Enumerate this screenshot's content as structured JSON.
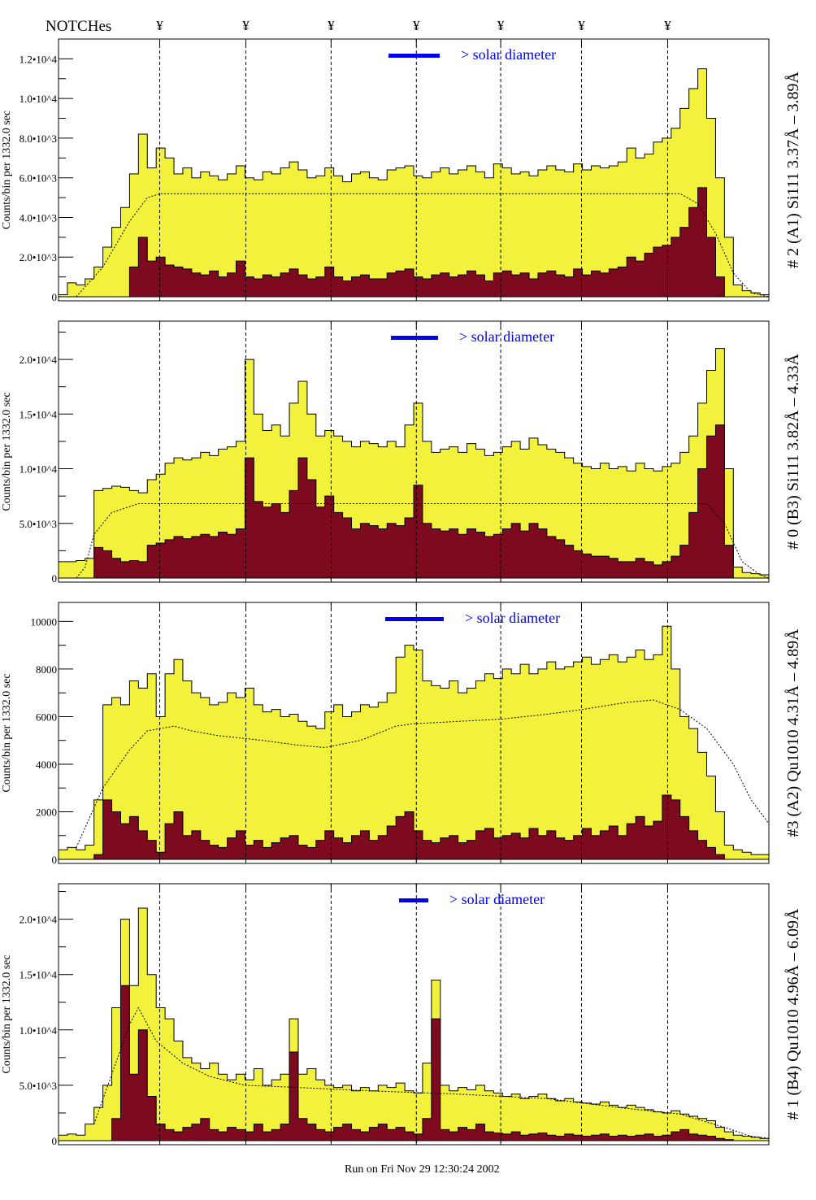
{
  "header": {
    "notches_label": "NOTCHes",
    "notch_marker": "¥"
  },
  "footer": {
    "run_info": "Run on Fri Nov 29 12:30:24 2002"
  },
  "colors": {
    "total": "#f2f23c",
    "subset": "#7d0a1e",
    "legend": "#0000ee",
    "outline": "#000000"
  },
  "chart_data": [
    {
      "type": "bar",
      "title": "# 2 (A1) Si111  3.37Å – 3.89Å",
      "ylabel": "Counts/bin per   1332.0 sec",
      "legend": "> solar diameter",
      "ylim": [
        0,
        13000
      ],
      "yticks": [
        {
          "v": 0,
          "label": "0"
        },
        {
          "v": 2000,
          "label": "2.0•10^3"
        },
        {
          "v": 4000,
          "label": "4.0•10^3"
        },
        {
          "v": 6000,
          "label": "6.0•10^3"
        },
        {
          "v": 8000,
          "label": "8.0•10^3"
        },
        {
          "v": 10000,
          "label": "1.0•10^4"
        },
        {
          "v": 12000,
          "label": "1.2•10^4"
        }
      ],
      "bins": 80,
      "notches": [
        11.4,
        21.1,
        30.7,
        40.3,
        49.8,
        58.9,
        68.6
      ],
      "series": [
        {
          "name": "total",
          "values": [
            100,
            700,
            600,
            900,
            1500,
            2500,
            3500,
            4500,
            6200,
            8200,
            6500,
            7500,
            7000,
            6200,
            6500,
            6000,
            6300,
            6100,
            5900,
            6200,
            6600,
            6000,
            5900,
            6300,
            6200,
            6500,
            6800,
            6400,
            6000,
            6100,
            6500,
            6100,
            5800,
            6200,
            6300,
            6000,
            5900,
            6400,
            6500,
            6600,
            6100,
            6000,
            6300,
            6500,
            6200,
            6400,
            6600,
            6300,
            6000,
            6700,
            6500,
            6200,
            6300,
            6100,
            6400,
            6600,
            6400,
            6300,
            6700,
            6400,
            6600,
            6500,
            6600,
            6800,
            7500,
            7000,
            7200,
            7800,
            8000,
            8500,
            9500,
            10500,
            11500,
            9000,
            6000,
            3000,
            600,
            300,
            200,
            100
          ]
        },
        {
          "name": "subset",
          "values": [
            0,
            0,
            0,
            0,
            0,
            0,
            0,
            0,
            1500,
            3000,
            1800,
            2000,
            1600,
            1500,
            1400,
            1200,
            1100,
            1300,
            1000,
            1200,
            1800,
            1000,
            900,
            1100,
            1000,
            1200,
            1400,
            1100,
            900,
            1000,
            1500,
            1000,
            800,
            1000,
            1100,
            900,
            900,
            1200,
            1300,
            1400,
            1000,
            900,
            1100,
            1200,
            1000,
            1100,
            1300,
            1100,
            800,
            1200,
            1300,
            1100,
            1200,
            900,
            1200,
            1300,
            1100,
            1000,
            1400,
            1100,
            1300,
            1200,
            1400,
            1500,
            2000,
            1800,
            2200,
            2500,
            2600,
            3000,
            3500,
            4500,
            5500,
            3000,
            1000,
            0,
            0,
            0,
            0,
            0
          ]
        },
        {
          "name": "model",
          "points": [
            [
              2,
              0
            ],
            [
              5,
              1500
            ],
            [
              8,
              3800
            ],
            [
              10,
              5000
            ],
            [
              11.5,
              5200
            ],
            [
              70,
              5200
            ],
            [
              72,
              4700
            ],
            [
              74,
              3200
            ],
            [
              76,
              1200
            ],
            [
              78,
              200
            ],
            [
              80,
              0
            ]
          ]
        }
      ]
    },
    {
      "type": "bar",
      "title": "# 0 (B3) Si111  3.82Å – 4.33Å",
      "ylabel": "Counts/bin per   1332.0 sec",
      "legend": "> solar diameter",
      "ylim": [
        0,
        23500
      ],
      "yticks": [
        {
          "v": 0,
          "label": "0"
        },
        {
          "v": 5000,
          "label": "5.0•10^3"
        },
        {
          "v": 10000,
          "label": "1.0•10^4"
        },
        {
          "v": 15000,
          "label": "1.5•10^4"
        },
        {
          "v": 20000,
          "label": "2.0•10^4"
        }
      ],
      "bins": 80,
      "notches": [
        11.4,
        21.1,
        30.7,
        40.3,
        49.8,
        58.9,
        68.6
      ],
      "series": [
        {
          "name": "total",
          "values": [
            1500,
            1500,
            1600,
            1800,
            8000,
            8200,
            8400,
            8300,
            8000,
            7800,
            9000,
            9500,
            10500,
            11000,
            10800,
            11000,
            11500,
            11200,
            11800,
            12000,
            12500,
            20000,
            15000,
            13500,
            14000,
            13000,
            16000,
            18000,
            15000,
            13000,
            13500,
            13000,
            12500,
            12000,
            12500,
            12300,
            12000,
            12500,
            12000,
            14000,
            16000,
            12500,
            11500,
            11800,
            12000,
            11500,
            12300,
            11800,
            11200,
            11500,
            12000,
            12500,
            11800,
            12800,
            12200,
            11800,
            11500,
            11000,
            10500,
            10200,
            10000,
            10500,
            10000,
            10200,
            9800,
            10500,
            10000,
            9800,
            10200,
            10500,
            11500,
            13000,
            16000,
            19000,
            21000,
            10000,
            1000,
            500,
            400,
            300
          ]
        },
        {
          "name": "subset",
          "values": [
            0,
            0,
            0,
            0,
            2800,
            2500,
            1800,
            1500,
            1600,
            1500,
            3000,
            3200,
            3500,
            3800,
            3600,
            3800,
            4000,
            3800,
            4200,
            4000,
            4500,
            11000,
            7000,
            6500,
            6800,
            6000,
            8000,
            11000,
            9000,
            6500,
            7500,
            6000,
            5500,
            4500,
            5000,
            4800,
            4500,
            5000,
            4800,
            5500,
            8500,
            5000,
            4500,
            4300,
            4500,
            4000,
            4500,
            4200,
            3800,
            4000,
            4500,
            5000,
            4300,
            5000,
            4500,
            3800,
            3500,
            3000,
            2500,
            2200,
            2000,
            2000,
            1800,
            1500,
            1500,
            1800,
            1500,
            1200,
            1500,
            2000,
            3000,
            6000,
            10000,
            13000,
            14000,
            3000,
            0,
            0,
            0,
            0
          ]
        },
        {
          "name": "model",
          "points": [
            [
              2,
              0
            ],
            [
              3,
              1000
            ],
            [
              4,
              4000
            ],
            [
              6,
              6000
            ],
            [
              9,
              6800
            ],
            [
              73,
              6800
            ],
            [
              75,
              5000
            ],
            [
              77,
              1500
            ],
            [
              79,
              300
            ],
            [
              80,
              0
            ]
          ]
        }
      ]
    },
    {
      "type": "bar",
      "title": "#3 (A2) Qu1010  4.31Å – 4.89Å",
      "ylabel": "Counts/bin per   1332.0 sec",
      "legend": "> solar diameter",
      "ylim": [
        0,
        10800
      ],
      "yticks": [
        {
          "v": 0,
          "label": "0"
        },
        {
          "v": 2000,
          "label": "2000"
        },
        {
          "v": 4000,
          "label": "4000"
        },
        {
          "v": 6000,
          "label": "6000"
        },
        {
          "v": 8000,
          "label": "8000"
        },
        {
          "v": 10000,
          "label": "10000"
        }
      ],
      "bins": 80,
      "notches": [
        11.4,
        21.1,
        30.7,
        40.3,
        49.8,
        58.9,
        68.6
      ],
      "series": [
        {
          "name": "total",
          "values": [
            400,
            500,
            400,
            600,
            2500,
            6500,
            6800,
            6500,
            7500,
            7200,
            7800,
            6000,
            7800,
            8400,
            7500,
            7000,
            6800,
            6500,
            6600,
            7000,
            6800,
            7200,
            6500,
            6200,
            6300,
            6000,
            6100,
            5800,
            5600,
            5500,
            6200,
            6500,
            6000,
            6200,
            6500,
            6400,
            6600,
            7000,
            8500,
            9000,
            8800,
            7500,
            7300,
            7200,
            7500,
            7000,
            7200,
            7500,
            7800,
            7600,
            8000,
            7800,
            8200,
            7800,
            8000,
            8300,
            8000,
            8100,
            8300,
            8500,
            8200,
            8400,
            8600,
            8300,
            8500,
            8800,
            8400,
            8600,
            9800,
            8000,
            6000,
            5500,
            4500,
            3500,
            2000,
            600,
            400,
            300,
            200,
            200
          ]
        },
        {
          "name": "subset",
          "values": [
            0,
            0,
            0,
            0,
            200,
            2500,
            2000,
            1500,
            1800,
            1200,
            800,
            300,
            1500,
            2000,
            1000,
            1200,
            800,
            600,
            500,
            900,
            1200,
            600,
            800,
            500,
            700,
            900,
            1000,
            600,
            500,
            800,
            1200,
            900,
            700,
            1000,
            1200,
            800,
            1000,
            1400,
            1800,
            2000,
            1200,
            800,
            700,
            900,
            1000,
            700,
            800,
            1200,
            1300,
            900,
            1000,
            1100,
            900,
            1300,
            1000,
            1200,
            900,
            800,
            1000,
            1300,
            1000,
            1200,
            1400,
            1000,
            1500,
            1800,
            1400,
            1600,
            2700,
            2500,
            1800,
            1200,
            800,
            500,
            200,
            0,
            0,
            0,
            0,
            0
          ]
        },
        {
          "name": "model",
          "points": [
            [
              2,
              500
            ],
            [
              5,
              3000
            ],
            [
              8,
              4600
            ],
            [
              10,
              5400
            ],
            [
              13,
              5600
            ],
            [
              15,
              5400
            ],
            [
              18,
              5200
            ],
            [
              23,
              5000
            ],
            [
              27,
              4800
            ],
            [
              30,
              4700
            ],
            [
              34,
              5000
            ],
            [
              38,
              5600
            ],
            [
              40,
              5700
            ],
            [
              45,
              5800
            ],
            [
              50,
              5900
            ],
            [
              55,
              6100
            ],
            [
              59,
              6300
            ],
            [
              64,
              6600
            ],
            [
              67,
              6700
            ],
            [
              70,
              6300
            ],
            [
              73,
              5500
            ],
            [
              76,
              4000
            ],
            [
              78,
              2500
            ],
            [
              80,
              1500
            ]
          ]
        }
      ]
    },
    {
      "type": "bar",
      "title": "# 1 (B4) Qu1010 4.96Å – 6.09Å",
      "ylabel": "Counts/bin per   1332.0 sec",
      "legend": "> solar diameter",
      "ylim": [
        0,
        23200
      ],
      "yticks": [
        {
          "v": 0,
          "label": "0"
        },
        {
          "v": 5000,
          "label": "5.0•10^3"
        },
        {
          "v": 10000,
          "label": "1.0•10^4"
        },
        {
          "v": 15000,
          "label": "1.5•10^4"
        },
        {
          "v": 20000,
          "label": "2.0•10^4"
        }
      ],
      "bins": 80,
      "notches": [
        11.4,
        21.1,
        30.7,
        40.3,
        49.8,
        58.9,
        68.6
      ],
      "series": [
        {
          "name": "total",
          "values": [
            500,
            600,
            500,
            1500,
            3000,
            5000,
            12000,
            20000,
            14000,
            21000,
            15000,
            12000,
            11000,
            9000,
            7500,
            7000,
            6500,
            7000,
            6000,
            5500,
            6000,
            5500,
            6500,
            5000,
            5500,
            6000,
            11000,
            6000,
            6500,
            5500,
            5000,
            4800,
            5000,
            4500,
            4800,
            4500,
            5000,
            4800,
            5200,
            4500,
            4300,
            7000,
            14500,
            5000,
            4500,
            4800,
            4600,
            5000,
            4500,
            4300,
            4000,
            4200,
            3800,
            4000,
            4200,
            3800,
            3600,
            3800,
            3500,
            3400,
            3300,
            3500,
            3200,
            3000,
            3200,
            3000,
            2800,
            2600,
            2500,
            2700,
            2400,
            2200,
            2000,
            1800,
            1200,
            800,
            500,
            400,
            300,
            200
          ]
        },
        {
          "name": "subset",
          "values": [
            0,
            0,
            0,
            0,
            0,
            0,
            2000,
            14000,
            6000,
            10000,
            4000,
            1500,
            1000,
            800,
            1200,
            1500,
            2000,
            1000,
            800,
            1200,
            1000,
            800,
            1500,
            800,
            1000,
            1500,
            8000,
            2000,
            1500,
            1000,
            800,
            1200,
            1500,
            1000,
            800,
            1200,
            1500,
            1000,
            1200,
            800,
            600,
            2000,
            11000,
            1000,
            800,
            1200,
            1000,
            1500,
            800,
            700,
            600,
            800,
            500,
            600,
            700,
            500,
            400,
            600,
            500,
            400,
            500,
            600,
            400,
            500,
            400,
            500,
            600,
            400,
            500,
            800,
            1000,
            600,
            500,
            400,
            200,
            100,
            0,
            0,
            0,
            0
          ]
        },
        {
          "name": "model",
          "points": [
            [
              4,
              1500
            ],
            [
              6,
              6000
            ],
            [
              8,
              10500
            ],
            [
              9,
              12000
            ],
            [
              11,
              9000
            ],
            [
              14,
              7000
            ],
            [
              17,
              5800
            ],
            [
              21,
              5000
            ],
            [
              27,
              4800
            ],
            [
              35,
              4500
            ],
            [
              45,
              4200
            ],
            [
              55,
              3800
            ],
            [
              63,
              3000
            ],
            [
              70,
              2400
            ],
            [
              75,
              1200
            ],
            [
              78,
              400
            ],
            [
              80,
              200
            ]
          ]
        }
      ]
    }
  ]
}
